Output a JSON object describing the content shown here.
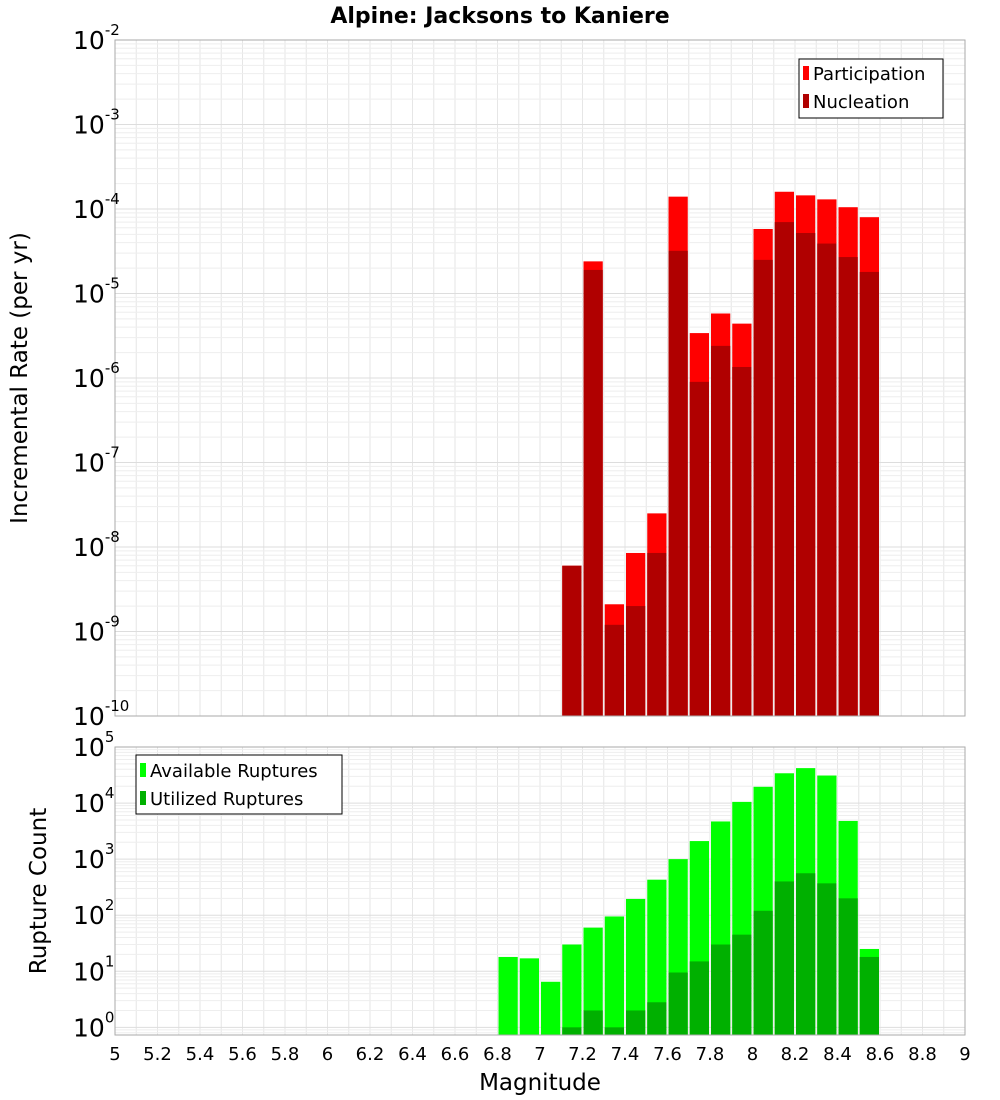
{
  "title": "Alpine: Jacksons to Kaniere",
  "chart_data": [
    {
      "type": "bar",
      "scale": "log",
      "ylabel": "Incremental Rate (per yr)",
      "xlim": [
        5,
        9
      ],
      "ylim": [
        1e-10,
        0.01
      ],
      "y_ticks": [
        {
          "base": "10",
          "exp": "-10"
        },
        {
          "base": "10",
          "exp": "-9"
        },
        {
          "base": "10",
          "exp": "-8"
        },
        {
          "base": "10",
          "exp": "-7"
        },
        {
          "base": "10",
          "exp": "-6"
        },
        {
          "base": "10",
          "exp": "-5"
        },
        {
          "base": "10",
          "exp": "-4"
        },
        {
          "base": "10",
          "exp": "-3"
        },
        {
          "base": "10",
          "exp": "-2"
        }
      ],
      "x": [
        7.15,
        7.25,
        7.35,
        7.45,
        7.55,
        7.65,
        7.75,
        7.85,
        7.95,
        8.05,
        8.15,
        8.25,
        8.35,
        8.45,
        8.55
      ],
      "legend_position": "top-right",
      "series": [
        {
          "name": "Participation",
          "color": "#ff0000",
          "values": [
            6e-09,
            2.4e-05,
            2.1e-09,
            8.5e-09,
            2.5e-08,
            0.00014,
            3.4e-06,
            5.8e-06,
            4.4e-06,
            5.8e-05,
            0.00016,
            0.000145,
            0.00013,
            0.000105,
            8e-05
          ]
        },
        {
          "name": "Nucleation",
          "color": "#b00000",
          "values": [
            6e-09,
            1.9e-05,
            1.2e-09,
            2e-09,
            8.5e-09,
            3.2e-05,
            9e-07,
            2.4e-06,
            1.35e-06,
            2.5e-05,
            7e-05,
            5.2e-05,
            3.9e-05,
            2.7e-05,
            1.8e-05
          ]
        }
      ]
    },
    {
      "type": "bar",
      "scale": "log",
      "ylabel": "Rupture Count",
      "xlabel": "Magnitude",
      "xlim": [
        5,
        9
      ],
      "ylim": [
        0.73,
        100000
      ],
      "y_ticks": [
        {
          "base": "10",
          "exp": "0",
          "value": 1
        },
        {
          "base": "10",
          "exp": "1",
          "value": 10
        },
        {
          "base": "10",
          "exp": "2",
          "value": 100
        },
        {
          "base": "10",
          "exp": "3",
          "value": 1000
        },
        {
          "base": "10",
          "exp": "4",
          "value": 10000
        },
        {
          "base": "10",
          "exp": "5",
          "value": 100000
        }
      ],
      "x_ticks": [
        "5",
        "5.2",
        "5.4",
        "5.6",
        "5.8",
        "6",
        "6.2",
        "6.4",
        "6.6",
        "6.8",
        "7",
        "7.2",
        "7.4",
        "7.6",
        "7.8",
        "8",
        "8.2",
        "8.4",
        "8.6",
        "8.8",
        "9"
      ],
      "x": [
        6.85,
        6.95,
        7.05,
        7.15,
        7.25,
        7.35,
        7.45,
        7.55,
        7.65,
        7.75,
        7.85,
        7.95,
        8.05,
        8.15,
        8.25,
        8.35,
        8.45,
        8.55
      ],
      "legend_position": "top-left",
      "series": [
        {
          "name": "Available Ruptures",
          "color": "#00ff00",
          "values": [
            18,
            17,
            6.5,
            30,
            60,
            95,
            195,
            430,
            1000,
            2100,
            4700,
            10500,
            19500,
            34000,
            42000,
            31000,
            4800,
            25
          ]
        },
        {
          "name": "Utilized Ruptures",
          "color": "#00b000",
          "values": [
            null,
            null,
            null,
            1,
            2,
            1,
            2,
            2.8,
            9.5,
            15,
            30,
            45,
            120,
            400,
            560,
            370,
            200,
            18
          ]
        }
      ]
    }
  ]
}
